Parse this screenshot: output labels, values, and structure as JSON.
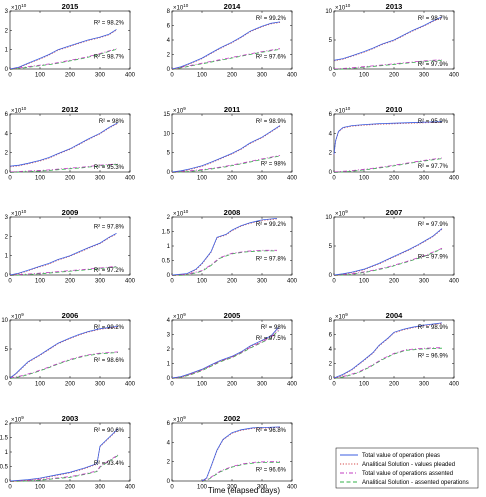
{
  "figure": {
    "xlabel": "Time (elapsed days)",
    "legend": [
      {
        "label": "Total value of operation pleas",
        "color": "#3b5ee0",
        "dash": "solid"
      },
      {
        "label": "Analitical Solution - values pleaded",
        "color": "#d44a4a",
        "dash": "dot"
      },
      {
        "label": "Total value of operations assented",
        "color": "#c23cc2",
        "dash": "dashdot"
      },
      {
        "label": "Analitical Solution - assented operations",
        "color": "#33b24a",
        "dash": "dash"
      }
    ]
  },
  "chart_data": [
    {
      "type": "line",
      "title": "2015",
      "exponent": "10",
      "xlim": [
        0,
        400
      ],
      "ylim": [
        0,
        3
      ],
      "yticks": [
        0,
        1,
        2,
        3
      ],
      "xticks": [
        0,
        100,
        200,
        300,
        400
      ],
      "r2_plea": "R² = 98.2%",
      "r2_assent": "R² = 98.7%",
      "series": [
        {
          "name": "Total value of operation pleas",
          "x": [
            0,
            30,
            60,
            100,
            130,
            160,
            200,
            230,
            260,
            300,
            330,
            355
          ],
          "y": [
            0,
            0.1,
            0.3,
            0.55,
            0.75,
            1.0,
            1.2,
            1.35,
            1.5,
            1.65,
            1.8,
            2.05
          ]
        },
        {
          "name": "Total value of operations assented",
          "x": [
            0,
            50,
            100,
            150,
            200,
            250,
            300,
            355
          ],
          "y": [
            0,
            0.1,
            0.2,
            0.3,
            0.45,
            0.6,
            0.8,
            1.05
          ]
        }
      ]
    },
    {
      "type": "line",
      "title": "2014",
      "exponent": "10",
      "xlim": [
        0,
        400
      ],
      "ylim": [
        0,
        8
      ],
      "yticks": [
        0,
        2,
        4,
        6,
        8
      ],
      "xticks": [
        0,
        100,
        200,
        300,
        400
      ],
      "r2_plea": "R² = 99.2%",
      "r2_assent": "R² = 97.6%",
      "series": [
        {
          "name": "Total value of operation pleas",
          "x": [
            0,
            30,
            60,
            100,
            130,
            160,
            200,
            230,
            260,
            300,
            330,
            360
          ],
          "y": [
            0,
            0.3,
            0.8,
            1.5,
            2.2,
            2.9,
            3.7,
            4.4,
            5.2,
            5.9,
            6.3,
            6.5
          ]
        },
        {
          "name": "Total value of operations assented",
          "x": [
            0,
            50,
            100,
            150,
            200,
            250,
            300,
            360
          ],
          "y": [
            0,
            0.4,
            0.8,
            1.2,
            1.6,
            2.0,
            2.4,
            2.8
          ]
        }
      ]
    },
    {
      "type": "line",
      "title": "2013",
      "exponent": "10",
      "xlim": [
        0,
        400
      ],
      "ylim": [
        0,
        10
      ],
      "yticks": [
        0,
        5,
        10
      ],
      "xticks": [
        0,
        100,
        200,
        300,
        400
      ],
      "r2_plea": "R² = 98.7%",
      "r2_assent": "R² = 97.9%",
      "series": [
        {
          "name": "Total value of operation pleas",
          "x": [
            0,
            30,
            60,
            100,
            130,
            160,
            200,
            230,
            260,
            300,
            330,
            360
          ],
          "y": [
            1.5,
            1.8,
            2.3,
            3.0,
            3.6,
            4.3,
            5.0,
            5.8,
            6.6,
            7.5,
            8.3,
            9.0
          ]
        },
        {
          "name": "Total value of operations assented",
          "x": [
            0,
            60,
            120,
            180,
            240,
            300,
            360
          ],
          "y": [
            0,
            0.2,
            0.5,
            0.8,
            1.1,
            1.4,
            1.6
          ]
        }
      ]
    },
    {
      "type": "line",
      "title": "2012",
      "exponent": "10",
      "xlim": [
        0,
        400
      ],
      "ylim": [
        0,
        6
      ],
      "yticks": [
        0,
        2,
        4,
        6
      ],
      "xticks": [
        0,
        100,
        200,
        300,
        400
      ],
      "r2_plea": "R² = 98%",
      "r2_assent": "R² = 95.3%",
      "series": [
        {
          "name": "Total value of operation pleas",
          "x": [
            0,
            30,
            60,
            100,
            130,
            160,
            200,
            230,
            260,
            300,
            330,
            360
          ],
          "y": [
            0.6,
            0.7,
            0.9,
            1.2,
            1.5,
            1.9,
            2.4,
            2.9,
            3.4,
            4.0,
            4.6,
            5.1
          ]
        },
        {
          "name": "Total value of operations assented",
          "x": [
            0,
            60,
            120,
            180,
            240,
            300,
            360
          ],
          "y": [
            0,
            0.1,
            0.2,
            0.35,
            0.5,
            0.7,
            0.85
          ]
        }
      ]
    },
    {
      "type": "line",
      "title": "2011",
      "exponent": "9",
      "xlim": [
        0,
        400
      ],
      "ylim": [
        0,
        15
      ],
      "yticks": [
        0,
        5,
        10,
        15
      ],
      "xticks": [
        0,
        100,
        200,
        300,
        400
      ],
      "r2_plea": "R² = 98.9%",
      "r2_assent": "R² = 98%",
      "series": [
        {
          "name": "Total value of operation pleas",
          "x": [
            0,
            30,
            60,
            100,
            130,
            160,
            200,
            230,
            260,
            300,
            330,
            360
          ],
          "y": [
            0,
            0.3,
            0.8,
            1.6,
            2.5,
            3.5,
            4.8,
            6.0,
            7.5,
            9.0,
            10.5,
            12.0
          ]
        },
        {
          "name": "Total value of operations assented",
          "x": [
            0,
            60,
            120,
            180,
            240,
            300,
            360
          ],
          "y": [
            0,
            0.3,
            0.8,
            1.5,
            2.4,
            3.4,
            4.3
          ]
        }
      ]
    },
    {
      "type": "line",
      "title": "2010",
      "exponent": "10",
      "xlim": [
        0,
        400
      ],
      "ylim": [
        0,
        6
      ],
      "yticks": [
        0,
        2,
        4,
        6
      ],
      "xticks": [
        0,
        100,
        200,
        300,
        400
      ],
      "r2_plea": "R² = 95.9%",
      "r2_assent": "R² = 97.7%",
      "series": [
        {
          "name": "Total value of operation pleas",
          "x": [
            0,
            5,
            15,
            30,
            60,
            100,
            150,
            200,
            250,
            300,
            360
          ],
          "y": [
            1.8,
            3.2,
            4.2,
            4.6,
            4.8,
            4.9,
            5.0,
            5.05,
            5.1,
            5.15,
            5.2
          ]
        },
        {
          "name": "Total value of operations assented",
          "x": [
            0,
            60,
            120,
            180,
            240,
            300,
            360
          ],
          "y": [
            0,
            0.15,
            0.35,
            0.6,
            0.9,
            1.2,
            1.45
          ]
        }
      ]
    },
    {
      "type": "line",
      "title": "2009",
      "exponent": "10",
      "xlim": [
        0,
        400
      ],
      "ylim": [
        0,
        3
      ],
      "yticks": [
        0,
        1,
        2,
        3
      ],
      "xticks": [
        0,
        100,
        200,
        300,
        400
      ],
      "r2_plea": "R² = 97.8%",
      "r2_assent": "R² = 97.2%",
      "series": [
        {
          "name": "Total value of operation pleas",
          "x": [
            0,
            30,
            60,
            100,
            130,
            160,
            200,
            230,
            260,
            300,
            330,
            355
          ],
          "y": [
            0,
            0.1,
            0.25,
            0.45,
            0.6,
            0.8,
            1.0,
            1.2,
            1.4,
            1.65,
            1.95,
            2.15
          ]
        },
        {
          "name": "Total value of operations assented",
          "x": [
            0,
            60,
            120,
            180,
            240,
            300,
            355
          ],
          "y": [
            0,
            0.05,
            0.12,
            0.2,
            0.28,
            0.36,
            0.45
          ]
        }
      ]
    },
    {
      "type": "line",
      "title": "2008",
      "exponent": "10",
      "xlim": [
        0,
        400
      ],
      "ylim": [
        0,
        2
      ],
      "yticks": [
        0,
        0.5,
        1,
        1.5,
        2
      ],
      "xticks": [
        0,
        100,
        200,
        300,
        400
      ],
      "r2_plea": "R² = 99.2%",
      "r2_assent": "R² = 97.8%",
      "series": [
        {
          "name": "Total value of operation pleas",
          "x": [
            0,
            50,
            80,
            100,
            130,
            150,
            180,
            200,
            230,
            260,
            300,
            350
          ],
          "y": [
            0,
            0.05,
            0.2,
            0.4,
            0.8,
            1.3,
            1.4,
            1.55,
            1.7,
            1.8,
            1.9,
            1.95
          ]
        },
        {
          "name": "Total value of operations assented",
          "x": [
            0,
            50,
            100,
            130,
            160,
            200,
            250,
            300,
            350
          ],
          "y": [
            0,
            0.02,
            0.15,
            0.35,
            0.6,
            0.75,
            0.82,
            0.85,
            0.85
          ]
        }
      ]
    },
    {
      "type": "line",
      "title": "2007",
      "exponent": "9",
      "xlim": [
        0,
        400
      ],
      "ylim": [
        0,
        10
      ],
      "yticks": [
        0,
        5,
        10
      ],
      "xticks": [
        0,
        100,
        200,
        300,
        400
      ],
      "r2_plea": "R² = 97.9%",
      "r2_assent": "R² = 97.9%",
      "series": [
        {
          "name": "Total value of operation pleas",
          "x": [
            0,
            30,
            60,
            100,
            150,
            200,
            250,
            280,
            300,
            330,
            360
          ],
          "y": [
            0,
            0.2,
            0.5,
            1.0,
            2.0,
            3.2,
            4.4,
            5.2,
            5.8,
            6.7,
            8.0
          ]
        },
        {
          "name": "Total value of operations assented",
          "x": [
            0,
            60,
            120,
            180,
            240,
            300,
            360
          ],
          "y": [
            0,
            0.2,
            0.7,
            1.4,
            2.3,
            3.3,
            4.6
          ]
        }
      ]
    },
    {
      "type": "line",
      "title": "2006",
      "exponent": "9",
      "xlim": [
        0,
        400
      ],
      "ylim": [
        0,
        10
      ],
      "yticks": [
        0,
        5,
        10
      ],
      "xticks": [
        0,
        100,
        200,
        300,
        400
      ],
      "r2_plea": "R² = 99.2%",
      "r2_assent": "R² = 98.6%",
      "series": [
        {
          "name": "Total value of operation pleas",
          "x": [
            0,
            20,
            40,
            60,
            100,
            130,
            160,
            200,
            230,
            260,
            300,
            360
          ],
          "y": [
            0,
            0.8,
            1.8,
            2.8,
            4.0,
            5.0,
            6.0,
            6.9,
            7.5,
            8.0,
            8.5,
            8.9
          ]
        },
        {
          "name": "Total value of operations assented",
          "x": [
            0,
            40,
            80,
            120,
            160,
            200,
            250,
            300,
            360
          ],
          "y": [
            0,
            0.4,
            1.0,
            1.7,
            2.5,
            3.2,
            3.9,
            4.3,
            4.5
          ]
        }
      ]
    },
    {
      "type": "line",
      "title": "2005",
      "exponent": "9",
      "xlim": [
        0,
        400
      ],
      "ylim": [
        0,
        4
      ],
      "yticks": [
        0,
        1,
        2,
        3,
        4
      ],
      "xticks": [
        0,
        100,
        200,
        300,
        400
      ],
      "r2_plea": "R² = 98%",
      "r2_assent": "R² = 97.5%",
      "series": [
        {
          "name": "Total value of operation pleas",
          "x": [
            0,
            30,
            60,
            100,
            130,
            160,
            200,
            230,
            260,
            300,
            330,
            355
          ],
          "y": [
            0,
            0.1,
            0.3,
            0.6,
            0.9,
            1.2,
            1.5,
            1.8,
            2.2,
            2.6,
            2.9,
            3.5
          ]
        },
        {
          "name": "Total value of operations assented",
          "x": [
            0,
            30,
            60,
            100,
            130,
            160,
            200,
            230,
            260,
            300,
            330,
            355
          ],
          "y": [
            0,
            0.1,
            0.25,
            0.55,
            0.85,
            1.15,
            1.45,
            1.75,
            2.1,
            2.5,
            2.8,
            3.3
          ]
        }
      ]
    },
    {
      "type": "line",
      "title": "2004",
      "exponent": "9",
      "xlim": [
        0,
        400
      ],
      "ylim": [
        0,
        8
      ],
      "yticks": [
        0,
        2,
        4,
        6,
        8
      ],
      "xticks": [
        0,
        100,
        200,
        300,
        400
      ],
      "r2_plea": "R² = 98.9%",
      "r2_assent": "R² = 96.9%",
      "series": [
        {
          "name": "Total value of operation pleas",
          "x": [
            0,
            30,
            60,
            100,
            130,
            150,
            180,
            200,
            230,
            260,
            300,
            360
          ],
          "y": [
            0,
            0.5,
            1.2,
            2.5,
            3.5,
            4.5,
            5.5,
            6.3,
            6.7,
            7.0,
            7.3,
            7.6
          ]
        },
        {
          "name": "Total value of operations assented",
          "x": [
            0,
            40,
            80,
            120,
            160,
            200,
            240,
            300,
            360
          ],
          "y": [
            0,
            0.3,
            0.8,
            1.6,
            2.6,
            3.4,
            3.9,
            4.1,
            4.2
          ]
        }
      ]
    },
    {
      "type": "line",
      "title": "2003",
      "exponent": "9",
      "xlim": [
        0,
        400
      ],
      "ylim": [
        0,
        2
      ],
      "yticks": [
        0,
        0.5,
        1,
        1.5,
        2
      ],
      "xticks": [
        0,
        100,
        200,
        300,
        400
      ],
      "r2_plea": "R² = 90.6%",
      "r2_assent": "R² = 93.4%",
      "series": [
        {
          "name": "Total value of operation pleas",
          "x": [
            0,
            60,
            100,
            150,
            200,
            250,
            290,
            300,
            330,
            360
          ],
          "y": [
            0,
            0.05,
            0.1,
            0.2,
            0.3,
            0.45,
            0.6,
            1.2,
            1.5,
            1.8
          ]
        },
        {
          "name": "Total value of operations assented",
          "x": [
            0,
            60,
            100,
            150,
            200,
            250,
            290,
            300,
            330,
            360
          ],
          "y": [
            0,
            0.02,
            0.05,
            0.1,
            0.15,
            0.25,
            0.35,
            0.5,
            0.7,
            0.9
          ]
        }
      ]
    },
    {
      "type": "line",
      "title": "2002",
      "exponent": "9",
      "xlim": [
        0,
        400
      ],
      "ylim": [
        0,
        6
      ],
      "yticks": [
        0,
        2,
        4,
        6
      ],
      "xticks": [
        0,
        100,
        200,
        300,
        400
      ],
      "r2_plea": "R² = 96.8%",
      "r2_assent": "R² = 96.6%",
      "series": [
        {
          "name": "Total value of operation pleas",
          "x": [
            100,
            115,
            130,
            150,
            170,
            200,
            230,
            270,
            320,
            360
          ],
          "y": [
            0,
            0.3,
            1.5,
            3.2,
            4.3,
            5.0,
            5.3,
            5.5,
            5.55,
            5.6
          ]
        },
        {
          "name": "Total value of operations assented",
          "x": [
            100,
            120,
            140,
            160,
            200,
            240,
            280,
            320,
            360
          ],
          "y": [
            0,
            0.2,
            0.6,
            1.0,
            1.5,
            1.8,
            1.95,
            2.0,
            2.0
          ]
        }
      ]
    }
  ]
}
